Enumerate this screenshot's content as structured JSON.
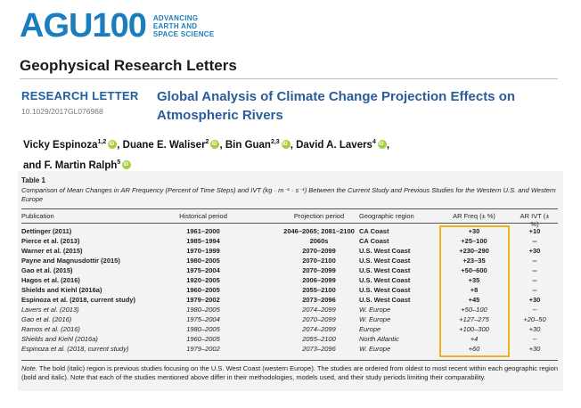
{
  "logo": {
    "main": "AGU100",
    "sub": [
      "ADVANCING",
      "EARTH AND",
      "SPACE SCIENCE"
    ]
  },
  "journal": "Geophysical Research Letters",
  "article_type": "RESEARCH LETTER",
  "doi": "10.1029/2017GL076968",
  "title": "Global Analysis of Climate Change Projection Effects on Atmospheric Rivers",
  "authors": [
    {
      "name": "Vicky Espinoza",
      "sup": "1,2"
    },
    {
      "name": "Duane E. Waliser",
      "sup": "2"
    },
    {
      "name": "Bin Guan",
      "sup": "2,3"
    },
    {
      "name": "David A. Lavers",
      "sup": "4"
    },
    {
      "name": "F. Martin Ralph",
      "sup": "5"
    }
  ],
  "table": {
    "caption": "Table 1",
    "description": "Comparison of Mean Changes in AR Frequency (Percent of Time Steps) and IVT (kg · m⁻¹ · s⁻¹) Between the Current Study and Previous Studies for the Western U.S. and Western Europe",
    "headers": [
      "Publication",
      "Historical period",
      "Projection period",
      "Geographic region",
      "AR Freq (± %)",
      "AR IVT (± %)"
    ],
    "rows": [
      {
        "pub": "Dettinger (2011)",
        "hist": "1961–2000",
        "proj": "2046–2065; 2081–2100",
        "geo": "CA Coast",
        "freq": "+30",
        "ivt": "+10",
        "style": "bold"
      },
      {
        "pub": "Pierce et al. (2013)",
        "hist": "1985–1994",
        "proj": "2060s",
        "geo": "CA Coast",
        "freq": "+25–100",
        "ivt": "--",
        "style": "bold"
      },
      {
        "pub": "Warner et al. (2015)",
        "hist": "1970–1999",
        "proj": "2070–2099",
        "geo": "U.S. West Coast",
        "freq": "+230–290",
        "ivt": "+30",
        "style": "bold"
      },
      {
        "pub": "Payne and Magnusdottir (2015)",
        "hist": "1980–2005",
        "proj": "2070–2100",
        "geo": "U.S. West Coast",
        "freq": "+23–35",
        "ivt": "--",
        "style": "bold"
      },
      {
        "pub": "Gao et al. (2015)",
        "hist": "1975–2004",
        "proj": "2070–2099",
        "geo": "U.S. West Coast",
        "freq": "+50–600",
        "ivt": "--",
        "style": "bold"
      },
      {
        "pub": "Hagos et al. (2016)",
        "hist": "1920–2005",
        "proj": "2006–2099",
        "geo": "U.S. West Coast",
        "freq": "+35",
        "ivt": "--",
        "style": "bold"
      },
      {
        "pub": "Shields and Kiehl (2016a)",
        "hist": "1960–2005",
        "proj": "2055–2100",
        "geo": "U.S. West Coast",
        "freq": "+8",
        "ivt": "--",
        "style": "bold"
      },
      {
        "pub": "Espinoza et al. (2018, current study)",
        "hist": "1979–2002",
        "proj": "2073–2096",
        "geo": "U.S. West Coast",
        "freq": "+45",
        "ivt": "+30",
        "style": "bold"
      },
      {
        "pub": "Lavers et al. (2013)",
        "hist": "1980–2005",
        "proj": "2074–2099",
        "geo": "W. Europe",
        "freq": "+50–100",
        "ivt": "--",
        "style": "ital"
      },
      {
        "pub": "Gao et al. (2016)",
        "hist": "1975–2004",
        "proj": "2070–2099",
        "geo": "W. Europe",
        "freq": "+127–275",
        "ivt": "+20–50",
        "style": "ital"
      },
      {
        "pub": "Ramos et al. (2016)",
        "hist": "1980–2005",
        "proj": "2074–2099",
        "geo": "Europe",
        "freq": "+100–300",
        "ivt": "+30",
        "style": "ital"
      },
      {
        "pub": "Shields and Kiehl (2016a)",
        "hist": "1960–2005",
        "proj": "2055–2100",
        "geo": "North Atlantic",
        "freq": "+4",
        "ivt": "--",
        "style": "ital"
      },
      {
        "pub": "Espinoza et al. (2018, current study)",
        "hist": "1979–2002",
        "proj": "2073–2096",
        "geo": "W. Europe",
        "freq": "+60",
        "ivt": "+30",
        "style": "ital"
      }
    ],
    "note_label": "Note.",
    "note": "The bold (italic) region is previous studies focusing on the U.S. West Coast (western Europe). The studies are ordered from oldest to most recent within each geographic region (bold and italic). Note that each of the studies mentioned above differ in their methodologies, models used, and their study periods limiting their comparability."
  }
}
